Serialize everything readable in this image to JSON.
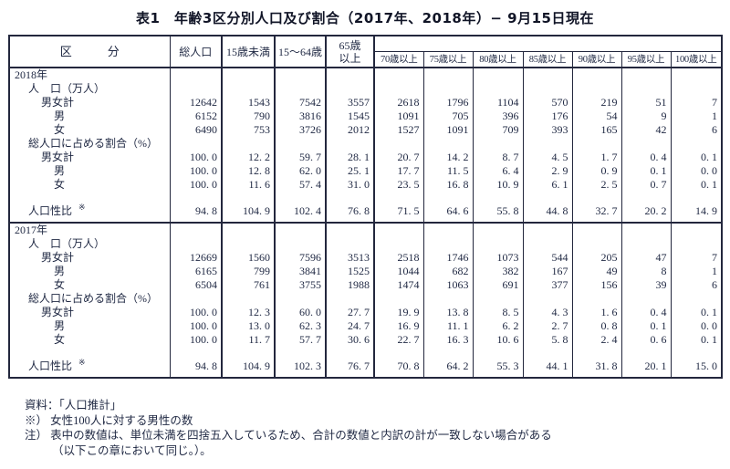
{
  "title": "表1　年齢3区分別人口及び割合（2017年、2018年）− 9月15日現在",
  "colors": {
    "text": "#1e2742",
    "border": "#23273d",
    "background": "#ffffff"
  },
  "table": {
    "header": {
      "category": "区　　　分",
      "total": "総人口",
      "under15": "15歳未満",
      "age15to64": "15〜64歳",
      "age65_line1": "65歳",
      "age65_line2": "以上",
      "subcolumns": [
        "70歳以上",
        "75歳以上",
        "80歳以上",
        "85歳以上",
        "90歳以上",
        "95歳以上",
        "100歳以上"
      ]
    },
    "sections": [
      {
        "rows": [
          {
            "label": "2018年",
            "indent": 0,
            "values": []
          },
          {
            "label": "人　口（万人）",
            "indent": 1,
            "values": []
          },
          {
            "label": "男女計",
            "indent": 2,
            "values": [
              "12642",
              "1543",
              "7542",
              "3557",
              "2618",
              "1796",
              "1104",
              "570",
              "219",
              "51",
              "7"
            ]
          },
          {
            "label": "男",
            "indent": 3,
            "values": [
              "6152",
              "790",
              "3816",
              "1545",
              "1091",
              "705",
              "396",
              "176",
              "54",
              "9",
              "1"
            ]
          },
          {
            "label": "女",
            "indent": 3,
            "values": [
              "6490",
              "753",
              "3726",
              "2012",
              "1527",
              "1091",
              "709",
              "393",
              "165",
              "42",
              "6"
            ]
          },
          {
            "label": "総人口に占める割合（%）",
            "indent": 1,
            "values": []
          },
          {
            "label": "男女計",
            "indent": 2,
            "values": [
              "100. 0",
              "12. 2",
              "59. 7",
              "28. 1",
              "20. 7",
              "14. 2",
              "8. 7",
              "4. 5",
              "1. 7",
              "0. 4",
              "0. 1"
            ]
          },
          {
            "label": "男",
            "indent": 3,
            "values": [
              "100. 0",
              "12. 8",
              "62. 0",
              "25. 1",
              "17. 7",
              "11. 5",
              "6. 4",
              "2. 9",
              "0. 9",
              "0. 1",
              "0. 0"
            ]
          },
          {
            "label": "女",
            "indent": 3,
            "values": [
              "100. 0",
              "11. 6",
              "57. 4",
              "31. 0",
              "23. 5",
              "16. 8",
              "10. 9",
              "6. 1",
              "2. 5",
              "0. 7",
              "0. 1"
            ]
          },
          {
            "label": "人口性比",
            "mark": "※",
            "indent": 1,
            "tall": true,
            "values": [
              "94. 8",
              "104. 9",
              "102. 4",
              "76. 8",
              "71. 5",
              "64. 6",
              "55. 8",
              "44. 8",
              "32. 7",
              "20. 2",
              "14. 9"
            ]
          }
        ]
      },
      {
        "rows": [
          {
            "label": "2017年",
            "indent": 0,
            "values": []
          },
          {
            "label": "人　口（万人）",
            "indent": 1,
            "values": []
          },
          {
            "label": "男女計",
            "indent": 2,
            "values": [
              "12669",
              "1560",
              "7596",
              "3513",
              "2518",
              "1746",
              "1073",
              "544",
              "205",
              "47",
              "7"
            ]
          },
          {
            "label": "男",
            "indent": 3,
            "values": [
              "6165",
              "799",
              "3841",
              "1525",
              "1044",
              "682",
              "382",
              "167",
              "49",
              "8",
              "1"
            ]
          },
          {
            "label": "女",
            "indent": 3,
            "values": [
              "6504",
              "761",
              "3755",
              "1988",
              "1474",
              "1063",
              "691",
              "377",
              "156",
              "39",
              "6"
            ]
          },
          {
            "label": "総人口に占める割合（%）",
            "indent": 1,
            "values": []
          },
          {
            "label": "男女計",
            "indent": 2,
            "values": [
              "100. 0",
              "12. 3",
              "60. 0",
              "27. 7",
              "19. 9",
              "13. 8",
              "8. 5",
              "4. 3",
              "1. 6",
              "0. 4",
              "0. 1"
            ]
          },
          {
            "label": "男",
            "indent": 3,
            "values": [
              "100. 0",
              "13. 0",
              "62. 3",
              "24. 7",
              "16. 9",
              "11. 1",
              "6. 2",
              "2. 7",
              "0. 8",
              "0. 1",
              "0. 0"
            ]
          },
          {
            "label": "女",
            "indent": 3,
            "values": [
              "100. 0",
              "11. 7",
              "57. 7",
              "30. 6",
              "22. 7",
              "16. 3",
              "10. 6",
              "5. 8",
              "2. 4",
              "0. 6",
              "0. 1"
            ]
          },
          {
            "label": "人口性比",
            "mark": "※",
            "indent": 1,
            "tall": true,
            "values": [
              "94. 8",
              "104. 9",
              "102. 3",
              "76. 7",
              "70. 8",
              "64. 2",
              "55. 3",
              "44. 1",
              "31. 8",
              "20. 1",
              "15. 0"
            ]
          }
        ]
      }
    ]
  },
  "footnotes": [
    {
      "text": "資料：「人口推計」",
      "indent": 0
    },
    {
      "text": "※） 女性100人に対する男性の数",
      "indent": 0
    },
    {
      "text": "注） 表中の数値は、単位未満を四捨五入しているため、合計の数値と内訳の計が一致しない場合がある",
      "indent": 0
    },
    {
      "text": "（以下この章において同じ。）。",
      "indent": 1
    }
  ]
}
